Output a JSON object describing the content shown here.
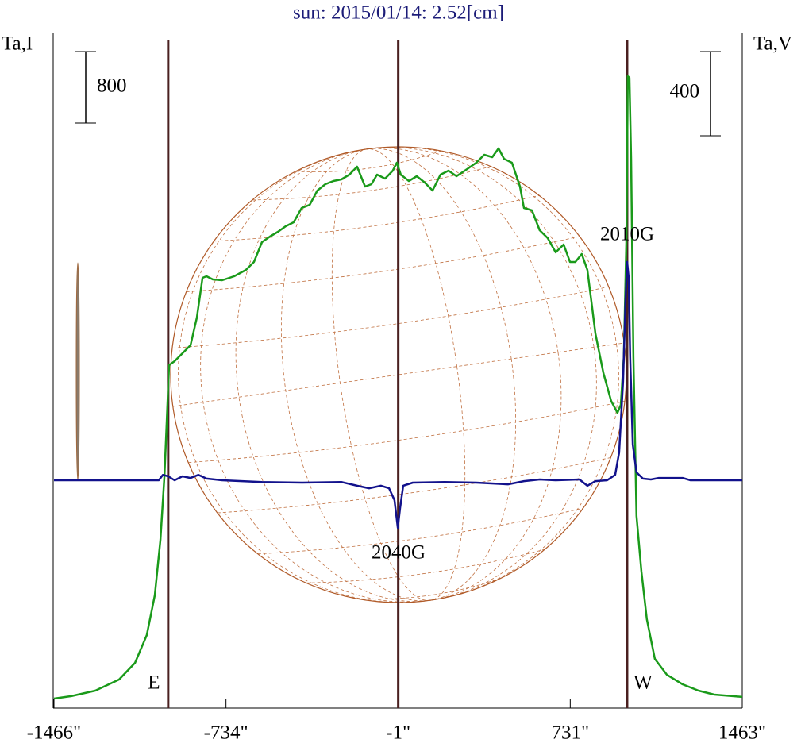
{
  "chart_data": {
    "type": "line",
    "title": "sun: 2015/01/14: 2.52[cm]",
    "title_color": "#1c1c78",
    "y_label": "Ta,I",
    "y2_label": "Ta,V",
    "xlim": [
      -1466,
      1463
    ],
    "xticks": [
      {
        "value": -1466,
        "label": "-1466\""
      },
      {
        "value": -734,
        "label": "-734\""
      },
      {
        "value": -1,
        "label": "-1\""
      },
      {
        "value": 731,
        "label": "731\""
      },
      {
        "value": 1463,
        "label": "1463\""
      }
    ],
    "ylim": [
      -107,
      7449
    ],
    "y2lim": [
      -1083,
      2125
    ],
    "scale_bars": [
      {
        "value": 800,
        "axis": "y"
      },
      {
        "value": 400,
        "axis": "y2"
      }
    ],
    "markers": [
      {
        "x": -980,
        "label": "E"
      },
      {
        "x": -1
      },
      {
        "x": 973,
        "label": "W"
      }
    ],
    "marker_color": "#4a2020",
    "annotations": [
      "2010G",
      "2040G"
    ],
    "series": [
      {
        "name": "I",
        "color": "#1a9a1a",
        "axis": "y",
        "x": [
          -1466,
          -1392,
          -1290,
          -1189,
          -1121,
          -1071,
          -1037,
          -1013,
          -996,
          -986,
          -976,
          -953,
          -919,
          -885,
          -858,
          -834,
          -817,
          -790,
          -750,
          -699,
          -649,
          -615,
          -581,
          -547,
          -513,
          -480,
          -446,
          -412,
          -378,
          -345,
          -311,
          -277,
          -243,
          -209,
          -176,
          -142,
          -115,
          -91,
          -57,
          -24,
          -7,
          10,
          44,
          78,
          112,
          145,
          179,
          213,
          247,
          297,
          331,
          365,
          399,
          426,
          449,
          483,
          517,
          534,
          568,
          601,
          635,
          669,
          703,
          730,
          753,
          780,
          804,
          821,
          838,
          872,
          905,
          932,
          946,
          959,
          970,
          976,
          983,
          990,
          1000,
          1013,
          1034,
          1057,
          1091,
          1142,
          1209,
          1277,
          1344,
          1463
        ],
        "values": [
          0,
          27,
          89,
          213,
          400,
          711,
          1156,
          1778,
          2489,
          3111,
          3733,
          3778,
          3867,
          3956,
          4267,
          4711,
          4729,
          4693,
          4684,
          4729,
          4800,
          4889,
          5111,
          5173,
          5227,
          5289,
          5333,
          5493,
          5529,
          5689,
          5760,
          5796,
          5813,
          5867,
          5956,
          5733,
          5760,
          5867,
          5822,
          5911,
          6000,
          5867,
          5796,
          5849,
          5778,
          5689,
          5867,
          5911,
          5849,
          5938,
          6000,
          6089,
          6062,
          6160,
          6044,
          6000,
          5733,
          5493,
          5467,
          5244,
          5156,
          4996,
          5084,
          4889,
          4889,
          4978,
          4800,
          4444,
          4089,
          3644,
          3333,
          3200,
          3289,
          3822,
          5156,
          6969,
          6951,
          6044,
          3822,
          2044,
          1422,
          889,
          444,
          267,
          160,
          89,
          44,
          18
        ]
      },
      {
        "name": "V",
        "color": "#12128c",
        "axis": "y2",
        "x": [
          -1466,
          -1020,
          -1003,
          -980,
          -953,
          -919,
          -885,
          -851,
          -817,
          -750,
          -581,
          -412,
          -243,
          -176,
          -125,
          -74,
          -40,
          -17,
          -3,
          7,
          20,
          61,
          196,
          331,
          466,
          534,
          601,
          669,
          770,
          804,
          838,
          888,
          922,
          939,
          956,
          966,
          973,
          980,
          986,
          997,
          1013,
          1040,
          1074,
          1108,
          1209,
          1243,
          1463
        ],
        "values": [
          0,
          0,
          26,
          19,
          0,
          19,
          11,
          26,
          8,
          0,
          -8,
          -11,
          -8,
          -26,
          -38,
          -26,
          -38,
          -94,
          -226,
          -132,
          -26,
          -11,
          -8,
          -11,
          -19,
          -4,
          4,
          0,
          4,
          -26,
          -4,
          0,
          26,
          132,
          472,
          849,
          1038,
          962,
          585,
          170,
          38,
          8,
          4,
          11,
          11,
          0,
          0
        ]
      }
    ]
  }
}
